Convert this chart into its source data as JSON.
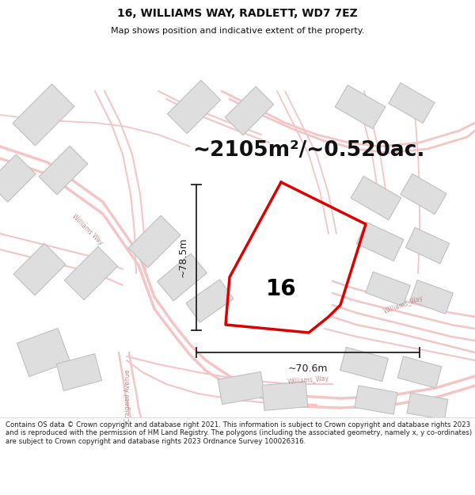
{
  "title": "16, WILLIAMS WAY, RADLETT, WD7 7EZ",
  "subtitle": "Map shows position and indicative extent of the property.",
  "area_text": "~2105m²/~0.520ac.",
  "label_16": "16",
  "dim_height": "~78.5m",
  "dim_width": "~70.6m",
  "footer": "Contains OS data © Crown copyright and database right 2021. This information is subject to Crown copyright and database rights 2023 and is reproduced with the permission of HM Land Registry. The polygons (including the associated geometry, namely x, y co-ordinates) are subject to Crown copyright and database rights 2023 Ordnance Survey 100026316.",
  "bg_color": "#ffffff",
  "map_bg": "#faf8f8",
  "road_color": "#f5c5c5",
  "road_outline": "#e8a8a8",
  "building_color": "#dedede",
  "building_edge": "#c0c0c0",
  "property_color": "#dd0000",
  "dim_color": "#222222",
  "title_color": "#111111",
  "area_color": "#111111",
  "road_label_color": "#c09090",
  "figsize": [
    6.0,
    6.25
  ],
  "dpi": 100,
  "title_fontsize": 10,
  "subtitle_fontsize": 8,
  "area_fontsize": 19,
  "label_fontsize": 20,
  "dim_fontsize": 9,
  "footer_fontsize": 6.2,
  "road_label_fontsize": 5.5
}
